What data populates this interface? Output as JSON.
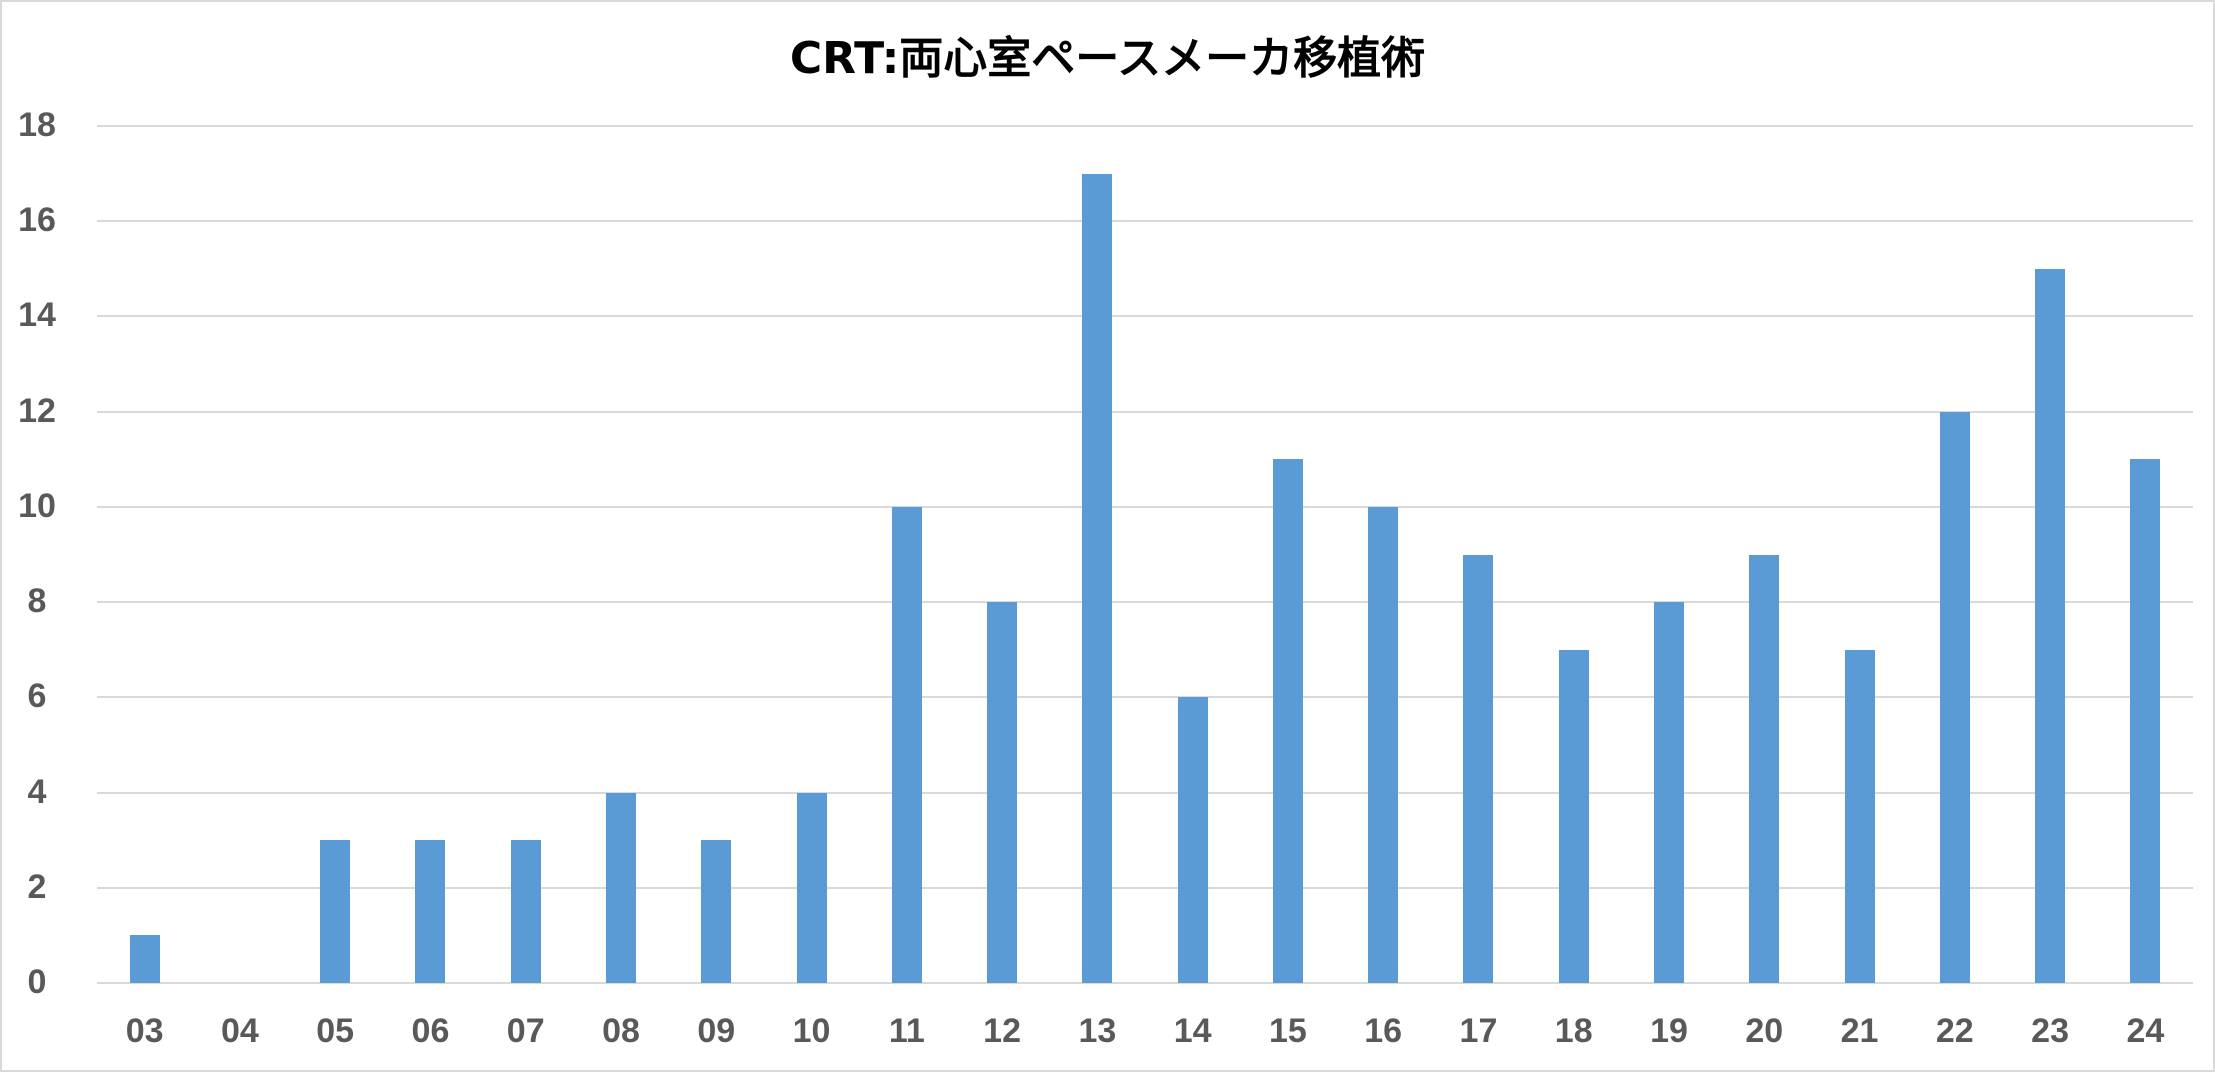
{
  "chart_data": {
    "type": "bar",
    "title": "CRT:両心室ペースメーカ移植術",
    "xlabel": "",
    "ylabel": "",
    "ylim": [
      0,
      18
    ],
    "yticks": [
      0,
      2,
      4,
      6,
      8,
      10,
      12,
      14,
      16,
      18
    ],
    "grid": true,
    "legend": null,
    "bar_color": "#5b9bd5",
    "categories": [
      "03",
      "04",
      "05",
      "06",
      "07",
      "08",
      "09",
      "10",
      "11",
      "12",
      "13",
      "14",
      "15",
      "16",
      "17",
      "18",
      "19",
      "20",
      "21",
      "22",
      "23",
      "24"
    ],
    "values": [
      1,
      0,
      3,
      3,
      3,
      4,
      3,
      4,
      10,
      8,
      17,
      6,
      11,
      10,
      9,
      7,
      8,
      9,
      7,
      12,
      15,
      11
    ]
  }
}
